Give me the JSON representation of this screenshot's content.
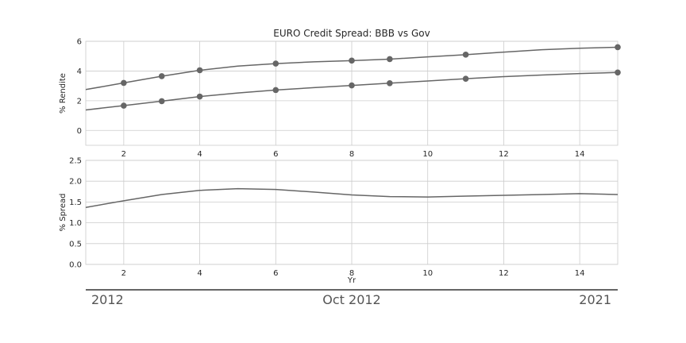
{
  "chart_data": [
    {
      "type": "line",
      "title": "EURO Credit Spread: BBB vs Gov",
      "xlabel": "",
      "ylabel": "% Rendite",
      "xlim": [
        1,
        15
      ],
      "ylim": [
        -1,
        6
      ],
      "xticks": [
        2,
        4,
        6,
        8,
        10,
        12,
        14
      ],
      "yticks": [
        0,
        2,
        4,
        6
      ],
      "grid": true,
      "series": [
        {
          "x": [
            1,
            2,
            3,
            4,
            5,
            6,
            7,
            8,
            9,
            10,
            11,
            12,
            13,
            14,
            15
          ],
          "values": [
            2.75,
            3.2,
            3.65,
            4.05,
            4.33,
            4.5,
            4.62,
            4.7,
            4.8,
            4.95,
            5.1,
            5.27,
            5.43,
            5.53,
            5.6
          ],
          "markers_at": [
            2,
            3,
            4,
            6,
            8,
            9,
            11,
            15
          ]
        },
        {
          "x": [
            1,
            2,
            3,
            4,
            5,
            6,
            7,
            8,
            9,
            10,
            11,
            12,
            13,
            14,
            15
          ],
          "values": [
            1.38,
            1.67,
            1.97,
            2.28,
            2.52,
            2.72,
            2.88,
            3.03,
            3.18,
            3.33,
            3.48,
            3.62,
            3.73,
            3.83,
            3.9
          ],
          "markers_at": [
            2,
            3,
            4,
            6,
            8,
            9,
            11,
            15
          ]
        }
      ]
    },
    {
      "type": "line",
      "title": "",
      "xlabel": "Yr",
      "ylabel": "% Spread",
      "xlim": [
        1,
        15
      ],
      "ylim": [
        0,
        2.5
      ],
      "xticks": [
        2,
        4,
        6,
        8,
        10,
        12,
        14
      ],
      "yticks": [
        0.0,
        0.5,
        1.0,
        1.5,
        2.0,
        2.5
      ],
      "ytick_labels": [
        "0.0",
        "0.5",
        "1.0",
        "1.5",
        "2.0",
        "2.5"
      ],
      "grid": true,
      "series": [
        {
          "x": [
            1,
            2,
            3,
            4,
            5,
            6,
            7,
            8,
            9,
            10,
            11,
            12,
            13,
            14,
            15
          ],
          "values": [
            1.37,
            1.53,
            1.68,
            1.78,
            1.82,
            1.8,
            1.74,
            1.67,
            1.63,
            1.62,
            1.64,
            1.66,
            1.68,
            1.7,
            1.68
          ]
        }
      ]
    }
  ],
  "timeline": {
    "start_label": "2012",
    "current_label": "Oct 2012",
    "end_label": "2021"
  }
}
